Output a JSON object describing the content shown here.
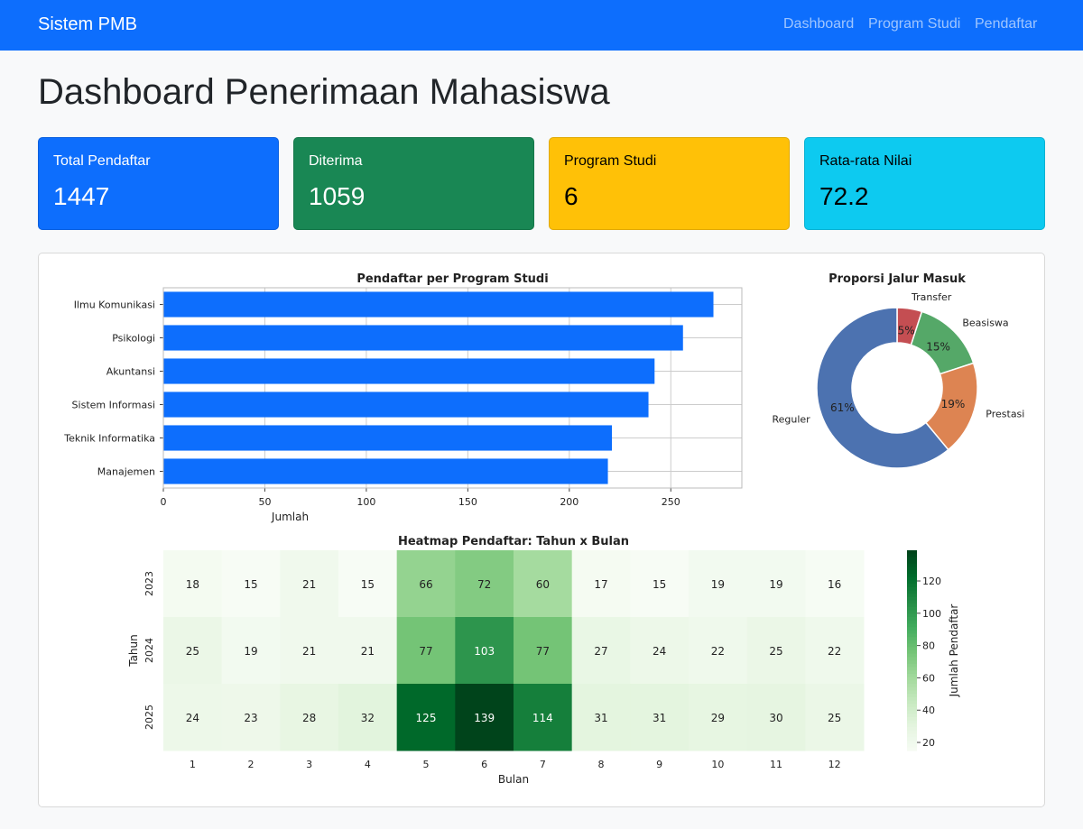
{
  "navbar": {
    "brand": "Sistem PMB",
    "links": [
      "Dashboard",
      "Program Studi",
      "Pendaftar"
    ],
    "bg_color": "#0d6efd"
  },
  "page": {
    "title": "Dashboard Penerimaan Mahasiswa"
  },
  "cards": [
    {
      "label": "Total Pendaftar",
      "value": "1447",
      "bg": "#0d6efd",
      "fg": "#ffffff"
    },
    {
      "label": "Diterima",
      "value": "1059",
      "bg": "#198754",
      "fg": "#ffffff"
    },
    {
      "label": "Program Studi",
      "value": "6",
      "bg": "#ffc107",
      "fg": "#000000"
    },
    {
      "label": "Rata-rata Nilai",
      "value": "72.2",
      "bg": "#0dcaf0",
      "fg": "#000000"
    }
  ],
  "chart_data": [
    {
      "type": "bar",
      "orientation": "horizontal",
      "title": "Pendaftar per Program Studi",
      "xlabel": "Jumlah",
      "ylabel": "",
      "categories": [
        "Ilmu Komunikasi",
        "Psikologi",
        "Akuntansi",
        "Sistem Informasi",
        "Teknik Informatika",
        "Manajemen"
      ],
      "values": [
        271,
        256,
        242,
        239,
        221,
        219
      ],
      "xlim": [
        0,
        285
      ],
      "xticks": [
        0,
        50,
        100,
        150,
        200,
        250
      ],
      "color": "#0d6efd",
      "grid": true
    },
    {
      "type": "pie",
      "donut": true,
      "title": "Proporsi Jalur Masuk",
      "labels": [
        "Transfer",
        "Beasiswa",
        "Prestasi",
        "Reguler"
      ],
      "values": [
        5,
        15,
        19,
        61
      ],
      "value_labels": [
        "5%",
        "15%",
        "19%",
        "61%"
      ],
      "colors": [
        "#c44e52",
        "#55a868",
        "#dd8452",
        "#4c72b0"
      ]
    },
    {
      "type": "heatmap",
      "title": "Heatmap Pendaftar: Tahun x Bulan",
      "xlabel": "Bulan",
      "ylabel": "Tahun",
      "x": [
        "1",
        "2",
        "3",
        "4",
        "5",
        "6",
        "7",
        "8",
        "9",
        "10",
        "11",
        "12"
      ],
      "y": [
        "2023",
        "2024",
        "2025"
      ],
      "values": [
        [
          18,
          15,
          21,
          15,
          66,
          72,
          60,
          17,
          15,
          19,
          19,
          16
        ],
        [
          25,
          19,
          21,
          21,
          77,
          103,
          77,
          27,
          24,
          22,
          25,
          22
        ],
        [
          24,
          23,
          28,
          32,
          125,
          139,
          114,
          31,
          31,
          29,
          30,
          25
        ]
      ],
      "vmin": 15,
      "vmax": 139,
      "colormap": "Greens",
      "colorbar_label": "Jumlah Pendaftar",
      "colorbar_ticks": [
        20,
        40,
        60,
        80,
        100,
        120
      ]
    }
  ]
}
